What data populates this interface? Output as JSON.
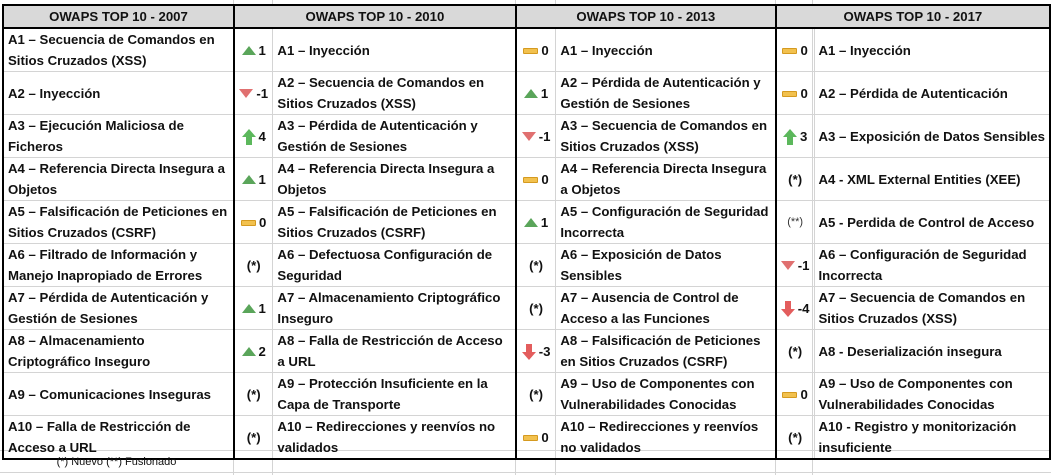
{
  "headers": [
    "OWAPS TOP 10 - 2007",
    "OWAPS TOP 10 - 2010",
    "OWAPS TOP 10 - 2013",
    "OWAPS TOP 10 - 2017"
  ],
  "colors": {
    "header_bg": "#d9d9d9",
    "up": "#5aa55a",
    "down": "#e07070",
    "neutral": "#f2c14e"
  },
  "rows": [
    {
      "y2007": "A1 – Secuencia de Comandos en Sitios Cruzados (XSS)",
      "c2010": {
        "icon": "triangle-up",
        "value": "1"
      },
      "y2010": "A1 – Inyección",
      "c2013": {
        "icon": "dash",
        "value": "0"
      },
      "y2013": "A1 – Inyección",
      "c2017": {
        "icon": "dash",
        "value": "0"
      },
      "y2017": "A1 – Inyección"
    },
    {
      "y2007": "A2 – Inyección",
      "c2010": {
        "icon": "triangle-down",
        "value": "-1"
      },
      "y2010": "A2 – Secuencia de Comandos en Sitios Cruzados (XSS)",
      "c2013": {
        "icon": "triangle-up",
        "value": "1"
      },
      "y2013": "A2 – Pérdida de Autenticación y Gestión de Sesiones",
      "c2017": {
        "icon": "dash",
        "value": "0"
      },
      "y2017": "A2 – Pérdida de Autenticación"
    },
    {
      "y2007": "A3 – Ejecución Maliciosa de Ficheros",
      "c2010": {
        "icon": "arrow-up",
        "value": "4"
      },
      "y2010": "A3 – Pérdida de Autenticación y Gestión de Sesiones",
      "c2013": {
        "icon": "triangle-down",
        "value": "-1"
      },
      "y2013": "A3 – Secuencia de Comandos en Sitios Cruzados (XSS)",
      "c2017": {
        "icon": "arrow-up",
        "value": "3"
      },
      "y2017": "A3 – Exposición de Datos Sensibles"
    },
    {
      "y2007": "A4 – Referencia Directa Insegura a Objetos",
      "c2010": {
        "icon": "triangle-up",
        "value": "1"
      },
      "y2010": "A4 – Referencia Directa Insegura a Objetos",
      "c2013": {
        "icon": "dash",
        "value": "0"
      },
      "y2013": "A4 – Referencia Directa Insegura a Objetos",
      "c2017": {
        "icon": "none",
        "value": "(*)"
      },
      "y2017": "A4 - XML External Entities (XEE)"
    },
    {
      "y2007": "A5 – Falsificación de Peticiones en Sitios Cruzados (CSRF)",
      "c2010": {
        "icon": "dash",
        "value": "0"
      },
      "y2010": "A5 – Falsificación de Peticiones en Sitios Cruzados (CSRF)",
      "c2013": {
        "icon": "triangle-up",
        "value": "1"
      },
      "y2013": "A5 –  Configuración de Seguridad Incorrecta",
      "c2017": {
        "icon": "merged",
        "value": "(**)"
      },
      "y2017": "A5 - Perdida de Control de Acceso"
    },
    {
      "y2007": "A6 – Filtrado de Información y Manejo Inapropiado de Errores",
      "c2010": {
        "icon": "none",
        "value": "(*)"
      },
      "y2010": "A6 – Defectuosa Configuración de Seguridad",
      "c2013": {
        "icon": "none",
        "value": "(*)"
      },
      "y2013": "A6 – Exposición de Datos Sensibles",
      "c2017": {
        "icon": "triangle-down",
        "value": "-1"
      },
      "y2017": "A6 –  Configuración de Seguridad Incorrecta"
    },
    {
      "y2007": "A7 – Pérdida de Autenticación y Gestión de Sesiones",
      "c2010": {
        "icon": "triangle-up",
        "value": "1"
      },
      "y2010": "A7 – Almacenamiento Criptográfico Inseguro",
      "c2013": {
        "icon": "none",
        "value": "(*)"
      },
      "y2013": "A7 – Ausencia de Control de Acceso a las Funciones",
      "c2017": {
        "icon": "arrow-down",
        "value": "-4"
      },
      "y2017": "A7 – Secuencia de Comandos en Sitios Cruzados (XSS)"
    },
    {
      "y2007": "A8 – Almacenamiento Criptográfico Inseguro",
      "c2010": {
        "icon": "triangle-up",
        "value": "2"
      },
      "y2010": "A8 – Falla de Restricción de Acceso a URL",
      "c2013": {
        "icon": "arrow-down",
        "value": "-3"
      },
      "y2013": "A8 – Falsificación de Peticiones en Sitios Cruzados (CSRF)",
      "c2017": {
        "icon": "none",
        "value": "(*)"
      },
      "y2017": "A8 - Deserialización insegura"
    },
    {
      "y2007": "A9 – Comunicaciones Inseguras",
      "c2010": {
        "icon": "none",
        "value": "(*)"
      },
      "y2010": "A9 – Protección Insuficiente en la Capa de Transporte",
      "c2013": {
        "icon": "none",
        "value": "(*)"
      },
      "y2013": "A9 – Uso de Componentes con Vulnerabilidades Conocidas",
      "c2017": {
        "icon": "dash",
        "value": "0"
      },
      "y2017": "A9 – Uso de Componentes con Vulnerabilidades Conocidas"
    },
    {
      "y2007": "A10 – Falla de Restricción de Acceso a URL",
      "c2010": {
        "icon": "none",
        "value": "(*)"
      },
      "y2010": "A10 – Redirecciones y reenvíos no validados",
      "c2013": {
        "icon": "dash",
        "value": "0"
      },
      "y2013": "A10 – Redirecciones y reenvíos no validados",
      "c2017": {
        "icon": "none",
        "value": "(*)"
      },
      "y2017": "A10 - Registro y monitorización insuficiente"
    }
  ],
  "footnote": "(*) Nuevo (**) Fusionado"
}
